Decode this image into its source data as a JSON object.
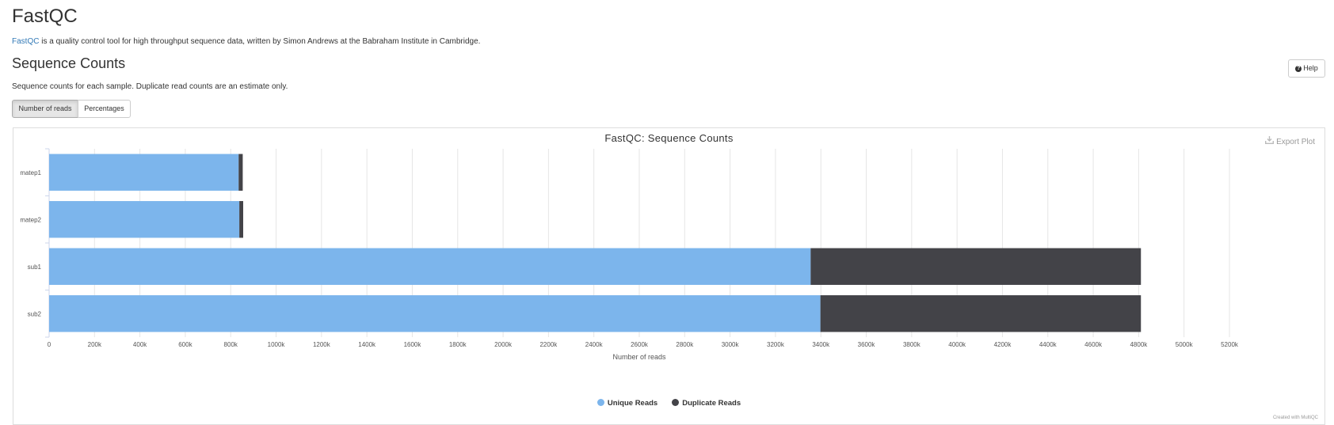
{
  "header": {
    "title": "FastQC",
    "intro_link": "FastQC",
    "intro_text": " is a quality control tool for high throughput sequence data, written by Simon Andrews at the Babraham Institute in Cambridge."
  },
  "section": {
    "title": "Sequence Counts",
    "description": "Sequence counts for each sample. Duplicate read counts are an estimate only.",
    "help_label": "Help",
    "toggle": {
      "reads_label": "Number of reads",
      "percent_label": "Percentages",
      "active": "reads"
    }
  },
  "plot": {
    "export_label": "Export Plot",
    "credits": "Created with MultiQC"
  },
  "colors": {
    "unique": "#7cb5ec",
    "duplicate": "#434348"
  },
  "chart_data": {
    "type": "bar",
    "orientation": "horizontal",
    "stacked": true,
    "title": "FastQC: Sequence Counts",
    "xlabel": "Number of reads",
    "ylabel": "",
    "xlim": [
      0,
      5200000
    ],
    "x_ticks": [
      0,
      200000,
      400000,
      600000,
      800000,
      1000000,
      1200000,
      1400000,
      1600000,
      1800000,
      2000000,
      2200000,
      2400000,
      2600000,
      2800000,
      3000000,
      3200000,
      3400000,
      3600000,
      3800000,
      4000000,
      4200000,
      4400000,
      4600000,
      4800000,
      5000000,
      5200000
    ],
    "x_tick_labels": [
      "0",
      "200k",
      "400k",
      "600k",
      "800k",
      "1000k",
      "1200k",
      "1400k",
      "1600k",
      "1800k",
      "2000k",
      "2200k",
      "2400k",
      "2600k",
      "2800k",
      "3000k",
      "3200k",
      "3400k",
      "3600k",
      "3800k",
      "4000k",
      "4200k",
      "4400k",
      "4600k",
      "4800k",
      "5000k",
      "5200k"
    ],
    "categories": [
      "matep1",
      "matep2",
      "sub1",
      "sub2"
    ],
    "series": [
      {
        "name": "Unique Reads",
        "values": [
          835000,
          838000,
          3355000,
          3398000
        ]
      },
      {
        "name": "Duplicate Reads",
        "values": [
          18000,
          17000,
          1455000,
          1412000
        ]
      }
    ],
    "grid": true,
    "legend": "bottom-center"
  }
}
